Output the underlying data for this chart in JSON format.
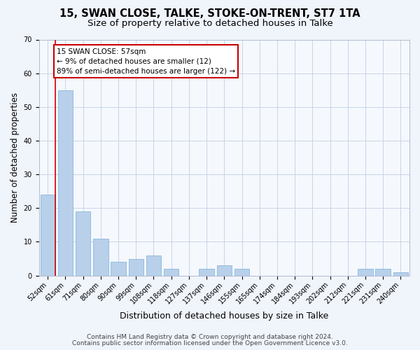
{
  "title": "15, SWAN CLOSE, TALKE, STOKE-ON-TRENT, ST7 1TA",
  "subtitle": "Size of property relative to detached houses in Talke",
  "xlabel": "Distribution of detached houses by size in Talke",
  "ylabel": "Number of detached properties",
  "categories": [
    "52sqm",
    "61sqm",
    "71sqm",
    "80sqm",
    "90sqm",
    "99sqm",
    "108sqm",
    "118sqm",
    "127sqm",
    "137sqm",
    "146sqm",
    "155sqm",
    "165sqm",
    "174sqm",
    "184sqm",
    "193sqm",
    "202sqm",
    "212sqm",
    "221sqm",
    "231sqm",
    "240sqm"
  ],
  "values": [
    24,
    55,
    19,
    11,
    4,
    5,
    6,
    2,
    0,
    2,
    3,
    2,
    0,
    0,
    0,
    0,
    0,
    0,
    2,
    2,
    1
  ],
  "bar_color": "#b8d0ea",
  "bar_edge_color": "#7aafd4",
  "annotation_line_color": "#cc0000",
  "box_text_line1": "15 SWAN CLOSE: 57sqm",
  "box_text_line2": "← 9% of detached houses are smaller (12)",
  "box_text_line3": "89% of semi-detached houses are larger (122) →",
  "box_color": "white",
  "box_edge_color": "#cc0000",
  "ylim": [
    0,
    70
  ],
  "yticks": [
    0,
    10,
    20,
    30,
    40,
    50,
    60,
    70
  ],
  "footer_line1": "Contains HM Land Registry data © Crown copyright and database right 2024.",
  "footer_line2": "Contains public sector information licensed under the Open Government Licence v3.0.",
  "bg_color": "#f0f4fb",
  "plot_bg_color": "#f5f8fd",
  "grid_color": "#c8d4e8",
  "title_fontsize": 10.5,
  "subtitle_fontsize": 9.5,
  "xlabel_fontsize": 9,
  "ylabel_fontsize": 8.5,
  "tick_fontsize": 7,
  "footer_fontsize": 6.5,
  "annotation_fontsize": 7.5
}
